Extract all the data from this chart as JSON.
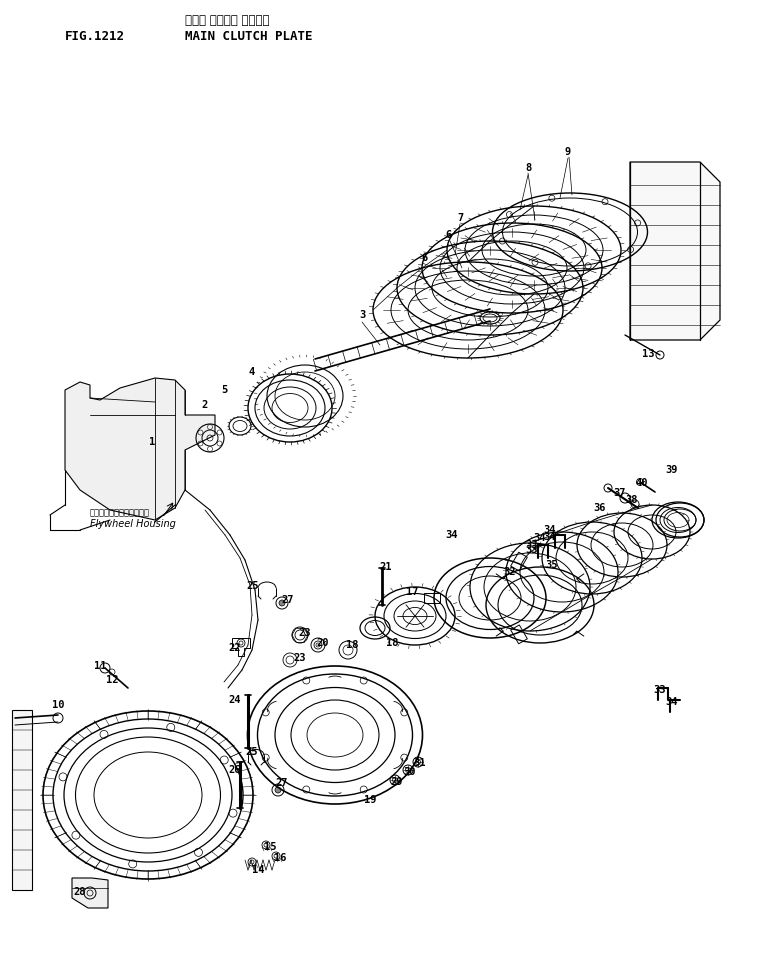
{
  "title_japanese": "メイン クラッチ プレート",
  "title_english": "MAIN CLUTCH PLATE",
  "fig_number": "FIG.1212",
  "flywheel_label_japanese": "フライホイールハウジング",
  "flywheel_label_english": "Flywheel Housing",
  "background_color": "#ffffff",
  "line_color": "#000000",
  "figsize": [
    7.66,
    9.57
  ],
  "dpi": 100
}
